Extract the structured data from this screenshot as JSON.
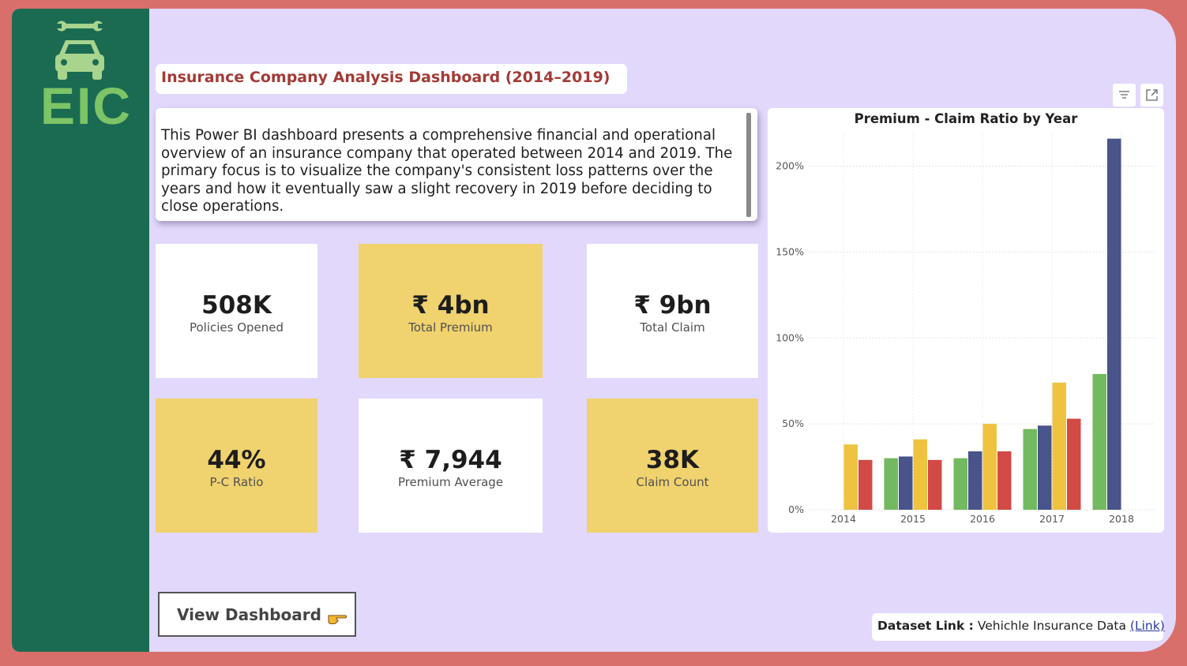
{
  "logo": {
    "text": "EIC",
    "icon": "car-wrench-icon"
  },
  "title": "Insurance Company Analysis Dashboard (2014–2019)",
  "description": "This Power BI dashboard presents a comprehensive financial and operational overview of an insurance company that operated between 2014 and 2019. The primary focus is to visualize the company's consistent loss patterns over the years and how it eventually saw a slight recovery in 2019 before deciding to close operations.",
  "kpis": [
    {
      "value": "508K",
      "label": "Policies Opened"
    },
    {
      "value": "₹ 4bn",
      "label": "Total Premium"
    },
    {
      "value": "₹ 9bn",
      "label": "Total Claim"
    },
    {
      "value": "44%",
      "label": "P-C Ratio"
    },
    {
      "value": "₹ 7,944",
      "label": "Premium Average"
    },
    {
      "value": "38K",
      "label": "Claim Count"
    }
  ],
  "colors": {
    "frame_bg": "#e2d8fb",
    "outer_bg": "#d96f6a",
    "sidebar": "#1b6b52",
    "kpi_yellow": "#f0d26e",
    "title_red": "#a33a35",
    "series": [
      "#72b95f",
      "#48548a",
      "#efc340",
      "#d24a45"
    ]
  },
  "chart_data": {
    "type": "bar",
    "title": "Premium - Claim Ratio by Year",
    "categories": [
      "2014",
      "2015",
      "2016",
      "2017",
      "2018"
    ],
    "series": [
      {
        "values": [
          0,
          30,
          30,
          47,
          79
        ]
      },
      {
        "values": [
          0,
          31,
          34,
          49,
          216
        ]
      },
      {
        "values": [
          38,
          41,
          50,
          74,
          0
        ]
      },
      {
        "values": [
          29,
          29,
          34,
          53,
          0
        ]
      }
    ],
    "yticks": [
      "0%",
      "50%",
      "100%",
      "150%",
      "200%"
    ],
    "ylim": [
      0,
      220
    ],
    "grid": true
  },
  "visual_header": {
    "filter_icon": "filter-icon",
    "focus_icon": "focus-mode-icon"
  },
  "view_button": {
    "label": "View Dashboard",
    "icon": "pointing-hand-icon"
  },
  "dataset": {
    "label": "Dataset Link :",
    "text": "Vehichle Insurance Data",
    "link": "(Link)"
  }
}
